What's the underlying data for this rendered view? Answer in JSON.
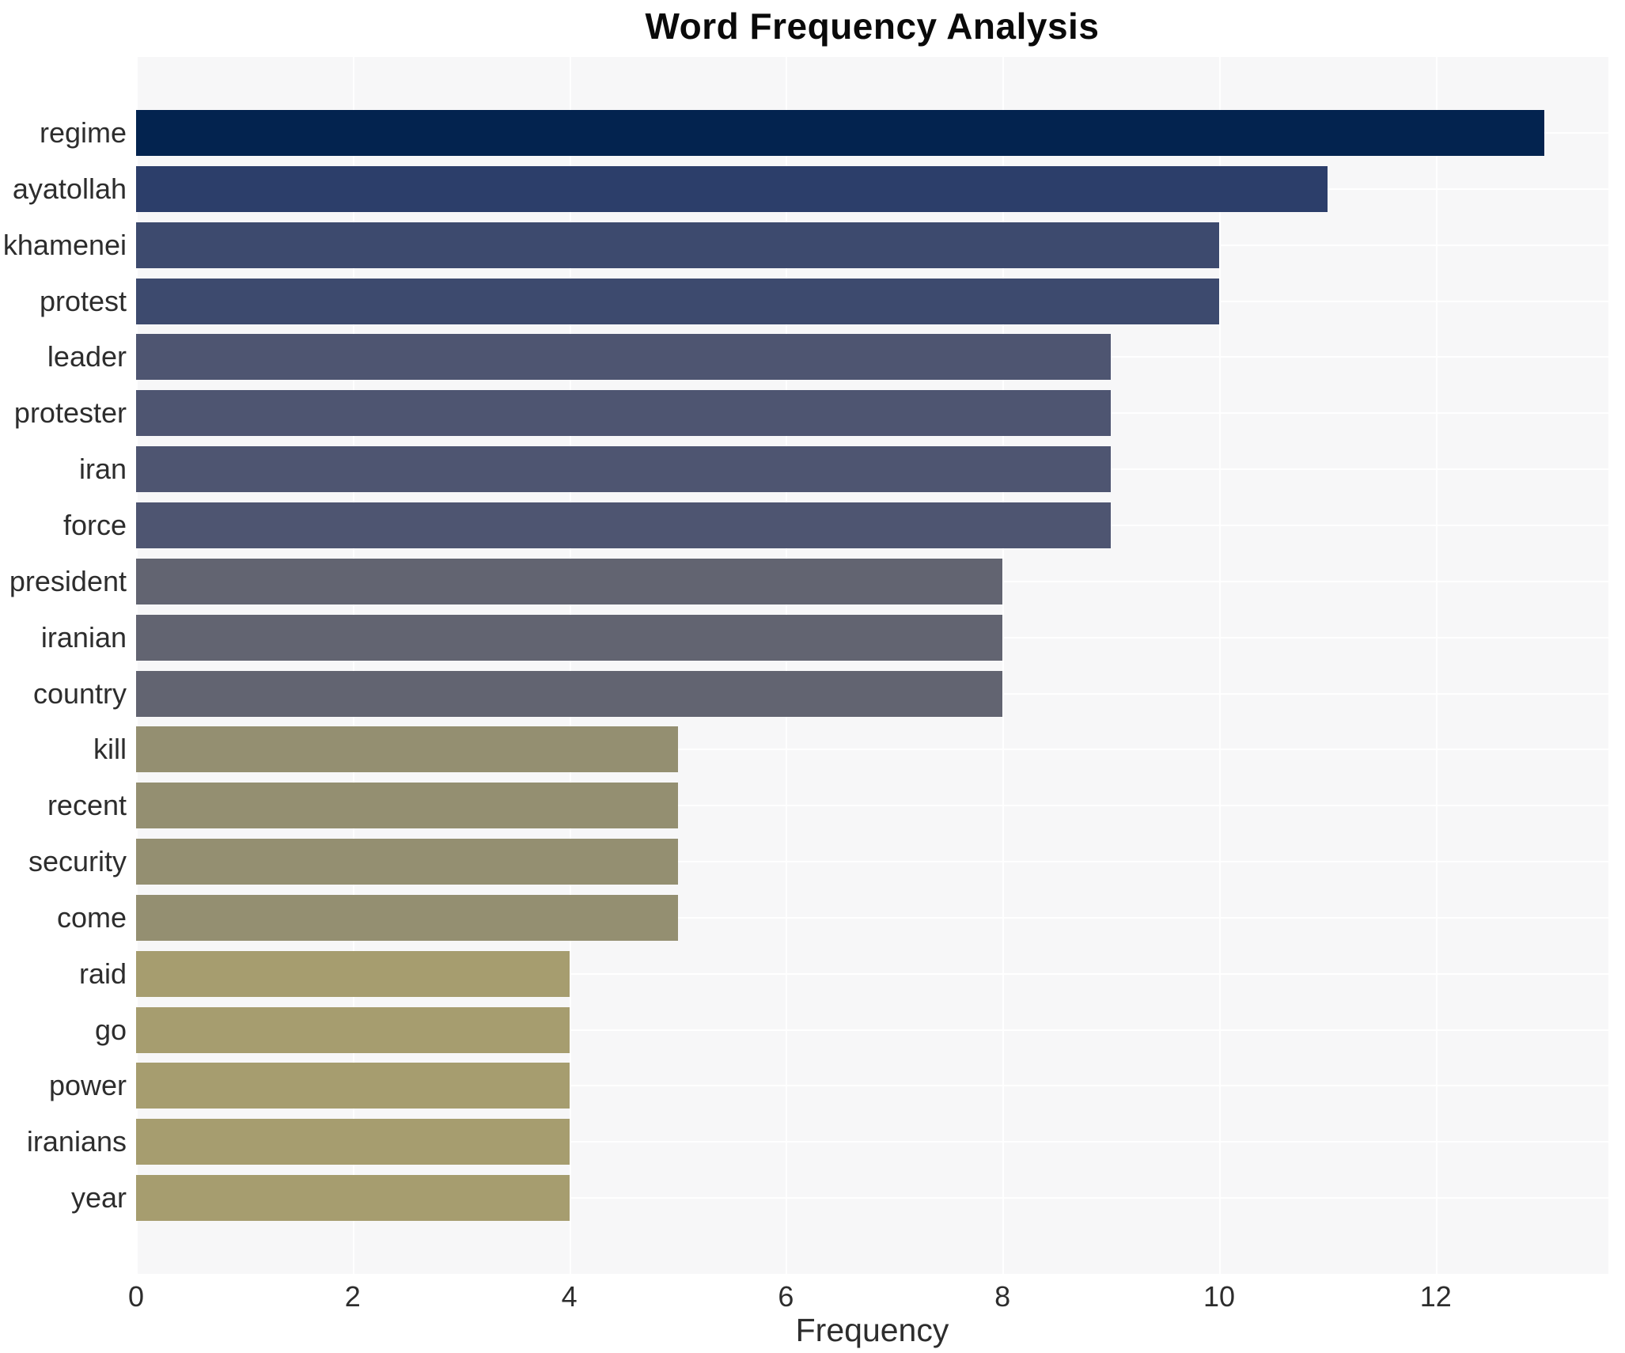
{
  "title": "Word Frequency Analysis",
  "xlabel": "Frequency",
  "chart_data": {
    "type": "bar",
    "orientation": "horizontal",
    "title": "Word Frequency Analysis",
    "xlabel": "Frequency",
    "ylabel": "",
    "categories": [
      "regime",
      "ayatollah",
      "khamenei",
      "protest",
      "leader",
      "protester",
      "iran",
      "force",
      "president",
      "iranian",
      "country",
      "kill",
      "recent",
      "security",
      "come",
      "raid",
      "go",
      "power",
      "iranians",
      "year"
    ],
    "values": [
      13,
      11,
      10,
      10,
      9,
      9,
      9,
      9,
      8,
      8,
      8,
      5,
      5,
      5,
      5,
      4,
      4,
      4,
      4,
      4
    ],
    "bar_colors": [
      "#03234f",
      "#2c3e6a",
      "#3d4a6e",
      "#3d4a6e",
      "#4e5571",
      "#4e5571",
      "#4e5571",
      "#4e5571",
      "#626471",
      "#626471",
      "#626471",
      "#948f71",
      "#948f71",
      "#948f71",
      "#948f71",
      "#a69d6f",
      "#a69d6f",
      "#a69d6f",
      "#a69d6f",
      "#a69d6f"
    ],
    "x_ticks": [
      0,
      2,
      4,
      6,
      8,
      10,
      12
    ],
    "xlim": [
      0,
      13.6
    ],
    "grid": true,
    "legend": "none",
    "plot_bg": "#f7f7f8",
    "grid_color": "#ffffff"
  }
}
